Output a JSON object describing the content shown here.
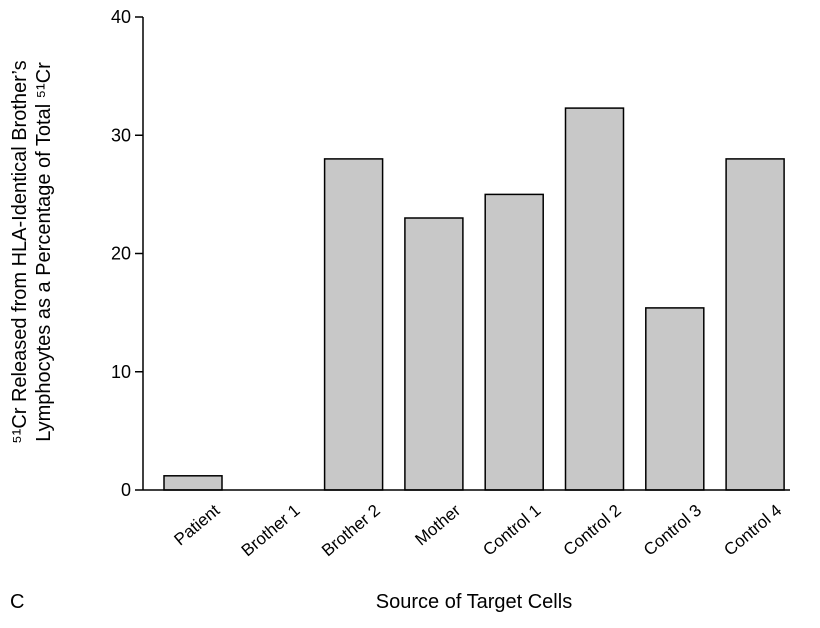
{
  "panel_label": "C",
  "chart_data": {
    "type": "bar",
    "categories": [
      "Patient",
      "Brother 1",
      "Brother 2",
      "Mother",
      "Control 1",
      "Control 2",
      "Control 3",
      "Control 4"
    ],
    "values": [
      1.2,
      0,
      28,
      23,
      25,
      32.3,
      15.4,
      28
    ],
    "xlabel": "Source of Target Cells",
    "ylabel_line1": "⁵¹Cr Released from HLA-Identical Brother’s",
    "ylabel_line2": "Lymphocytes as a Percentage of Total ⁵¹Cr",
    "ylim": [
      0,
      40
    ],
    "yticks": [
      0,
      10,
      20,
      30,
      40
    ],
    "bar_color": "#c8c8c8",
    "bar_edge_color": "#000000",
    "grid": false
  }
}
